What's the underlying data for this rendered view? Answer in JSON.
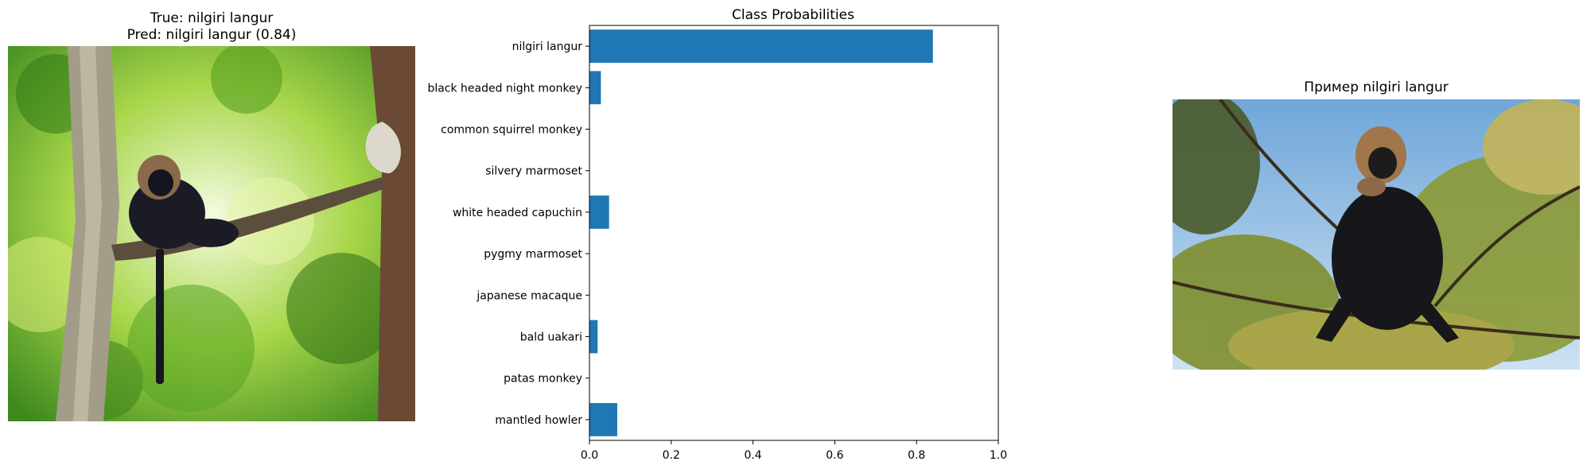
{
  "left_panel": {
    "title_line1": "True: nilgiri langur",
    "title_line2": "Pred: nilgiri langur (0.84)"
  },
  "right_panel": {
    "title": "Пример nilgiri langur"
  },
  "colors": {
    "bar": "#1f77b4"
  },
  "chart_data": {
    "type": "bar",
    "orientation": "horizontal",
    "title": "Class Probabilities",
    "xlabel": "",
    "ylabel": "",
    "categories": [
      "nilgiri langur",
      "black headed night monkey",
      "common squirrel monkey",
      "silvery marmoset",
      "white headed capuchin",
      "pygmy marmoset",
      "japanese macaque",
      "bald uakari",
      "patas monkey",
      "mantled howler"
    ],
    "values": [
      0.84,
      0.028,
      0.0,
      0.0,
      0.048,
      0.0,
      0.0,
      0.02,
      0.0,
      0.068
    ],
    "xlim": [
      0,
      1.0
    ],
    "xticks": [
      "0.0",
      "0.2",
      "0.4",
      "0.6",
      "0.8",
      "1.0"
    ],
    "grid": false
  }
}
